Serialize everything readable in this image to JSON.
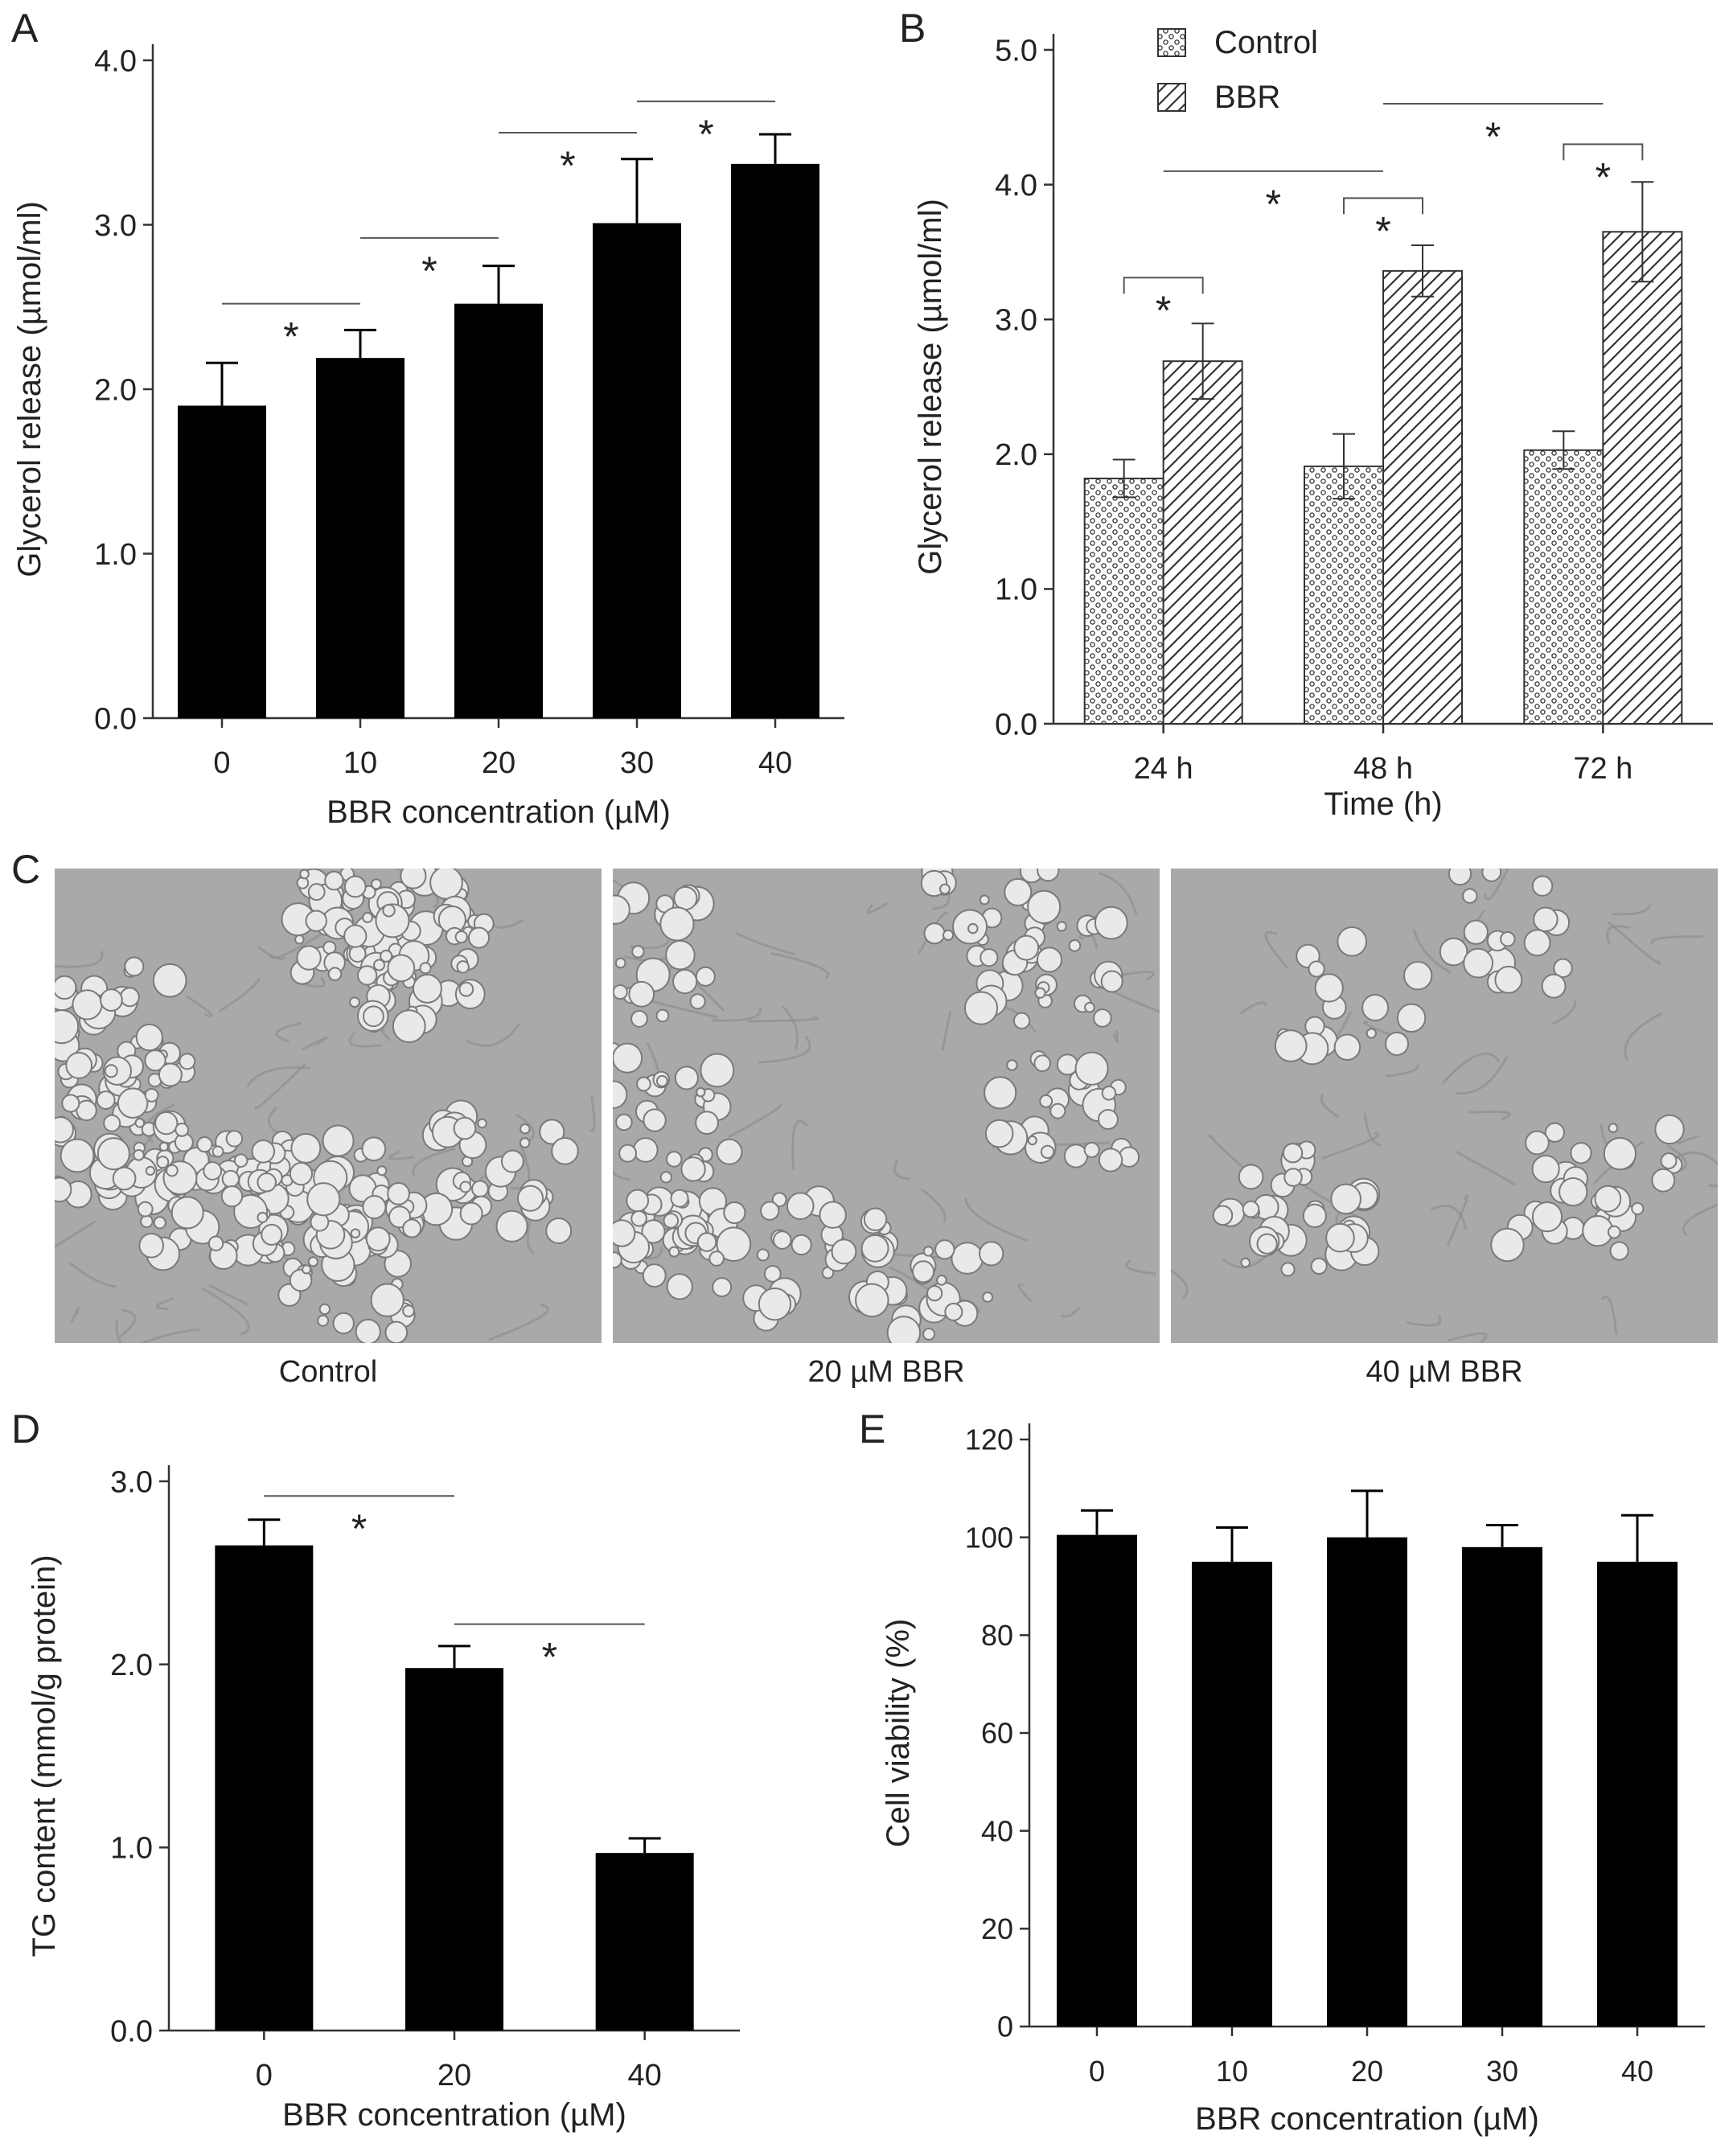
{
  "panels": {
    "A": "A",
    "B": "B",
    "C": "C",
    "D": "D",
    "E": "E"
  },
  "colors": {
    "bar": "#000000",
    "axis": "#333333",
    "text": "#222222",
    "hatch": "#333333",
    "micro_bg": "#a9a9a9",
    "micro_droplet": "#e9e9e9",
    "micro_rim": "#7a7a7a"
  },
  "micrographs": {
    "captions": [
      "Control",
      "20 µM BBR",
      "40 µM BBR"
    ],
    "droplet_density": [
      1.0,
      0.8,
      0.4
    ]
  },
  "chart_data": [
    {
      "id": "A",
      "type": "bar",
      "title": "",
      "xlabel": "BBR concentration (µM)",
      "ylabel": "Glycerol release (µmol/ml)",
      "categories": [
        "0",
        "10",
        "20",
        "30",
        "40"
      ],
      "series": [
        {
          "values": [
            1.9,
            2.19,
            2.52,
            3.01,
            3.37
          ],
          "errors": [
            0.26,
            0.17,
            0.23,
            0.39,
            0.18
          ]
        }
      ],
      "ylim": [
        0,
        4.0
      ],
      "yticks": [
        "0.0",
        "1.0",
        "2.0",
        "3.0",
        "4.0"
      ],
      "significance": [
        {
          "from": 0,
          "to": 1,
          "y": 2.52,
          "label": "*"
        },
        {
          "from": 1,
          "to": 2,
          "y": 2.92,
          "label": "*"
        },
        {
          "from": 2,
          "to": 3,
          "y": 3.56,
          "label": "*"
        },
        {
          "from": 3,
          "to": 4,
          "y": 3.75,
          "label": "*"
        }
      ],
      "grid": false
    },
    {
      "id": "B",
      "type": "bar",
      "title": "",
      "xlabel": "Time (h)",
      "ylabel": "Glycerol release (µmol/ml)",
      "categories": [
        "24 h",
        "48 h",
        "72 h"
      ],
      "series": [
        {
          "name": "Control",
          "values": [
            1.82,
            1.91,
            2.03
          ],
          "errors": [
            0.14,
            0.24,
            0.14
          ]
        },
        {
          "name": "BBR",
          "values": [
            2.69,
            3.36,
            3.65
          ],
          "errors": [
            0.28,
            0.19,
            0.37
          ]
        }
      ],
      "ylim": [
        0,
        5.0
      ],
      "yticks": [
        "0.0",
        "1.0",
        "2.0",
        "3.0",
        "4.0",
        "5.0"
      ],
      "legend": "top-left",
      "pair_significance": [
        {
          "group": 0,
          "y": 3.31,
          "label": "*"
        },
        {
          "group": 1,
          "y": 3.9,
          "label": "*"
        },
        {
          "group": 2,
          "y": 4.3,
          "label": "*"
        }
      ],
      "group_significance": [
        {
          "from": 0,
          "to": 1,
          "y": 4.1,
          "label": "*"
        },
        {
          "from": 1,
          "to": 2,
          "y": 4.6,
          "label": "*"
        }
      ],
      "grid": false
    },
    {
      "id": "D",
      "type": "bar",
      "title": "",
      "xlabel": "BBR concentration (µM)",
      "ylabel": "TG content (mmol/g protein)",
      "categories": [
        "0",
        "20",
        "40"
      ],
      "series": [
        {
          "values": [
            2.65,
            1.98,
            0.97
          ],
          "errors": [
            0.14,
            0.12,
            0.08
          ]
        }
      ],
      "ylim": [
        0,
        3.0
      ],
      "yticks": [
        "0.0",
        "1.0",
        "2.0",
        "3.0"
      ],
      "significance": [
        {
          "from": 0,
          "to": 1,
          "y": 2.92,
          "label": "*"
        },
        {
          "from": 1,
          "to": 2,
          "y": 2.22,
          "label": "*"
        }
      ],
      "grid": false
    },
    {
      "id": "E",
      "type": "bar",
      "title": "",
      "xlabel": "BBR concentration (µM)",
      "ylabel": "Cell viability (%)",
      "categories": [
        "0",
        "10",
        "20",
        "30",
        "40"
      ],
      "series": [
        {
          "values": [
            100.5,
            95,
            100,
            98,
            95
          ],
          "errors": [
            5,
            7,
            9.5,
            4.5,
            9.5
          ]
        }
      ],
      "ylim": [
        0,
        120
      ],
      "yticks": [
        "0",
        "20",
        "40",
        "60",
        "80",
        "100",
        "120"
      ],
      "grid": false
    }
  ]
}
